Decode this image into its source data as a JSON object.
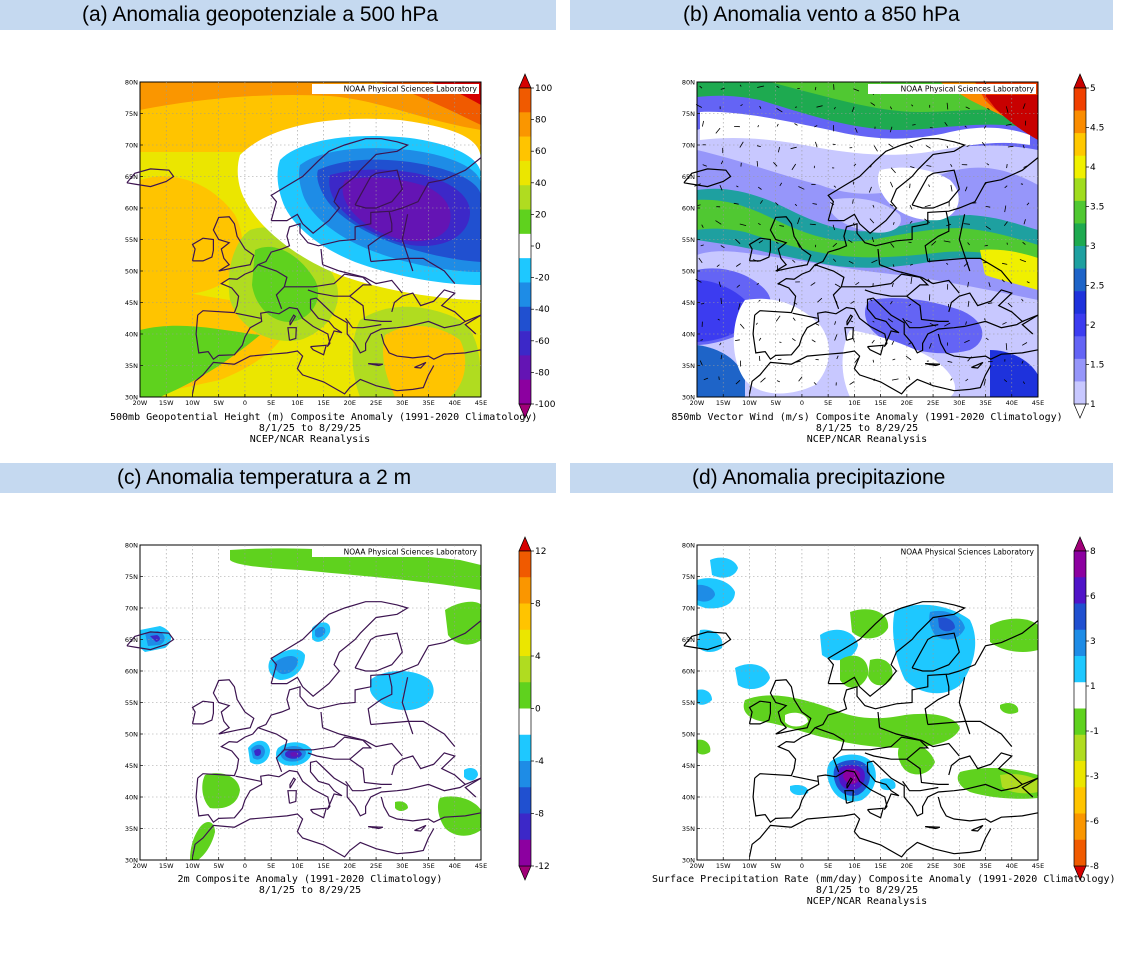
{
  "panels": [
    {
      "id": "a",
      "title": "(a) Anomalia geopotenziale a 500 hPa",
      "credit": "NOAA Physical Sciences Laboratory",
      "caption": [
        "500mb Geopotential Height (m) Composite Anomaly (1991-2020 Climatology)",
        "8/1/25  to 8/29/25",
        "NCEP/NCAR Reanalysis"
      ],
      "colorbar": {
        "labels": [
          "100",
          "80",
          "60",
          "40",
          "20",
          "0",
          "-20",
          "-40",
          "-60",
          "-80",
          "-100"
        ],
        "colors": [
          "#d60000",
          "#f05a00",
          "#fa9600",
          "#ffc400",
          "#ebe600",
          "#b0dc20",
          "#5fd21e",
          "#ffffff",
          "#1ec8ff",
          "#1e8ce6",
          "#2050d0",
          "#3c28c8",
          "#6414b4",
          "#8c00a0",
          "#a00078"
        ]
      }
    },
    {
      "id": "b",
      "title": "(b) Anomalia vento a 850 hPa",
      "credit": "NOAA Physical Sciences Laboratory",
      "caption": [
        "850mb Vector Wind (m/s) Composite Anomaly (1991-2020 Climatology)",
        "8/1/25  to 8/29/25",
        "NCEP/NCAR Reanalysis"
      ],
      "colorbar": {
        "labels": [
          "5",
          "4.5",
          "4",
          "3.5",
          "3",
          "2.5",
          "2",
          "1.5",
          "1"
        ],
        "colors": [
          "#c80000",
          "#f04000",
          "#fa8c00",
          "#ffc800",
          "#f0f000",
          "#a0dc1e",
          "#50c832",
          "#1eaa50",
          "#1ea0a0",
          "#1e64c8",
          "#1e32dc",
          "#3c3cf0",
          "#6464f5",
          "#9696fa",
          "#c8c8ff",
          "#ffffff"
        ]
      }
    },
    {
      "id": "c",
      "title": "(c) Anomalia temperatura a 2 m",
      "credit": "NOAA Physical Sciences Laboratory",
      "caption": [
        "2m   Composite Anomaly (1991-2020 Climatology)",
        "8/1/25  to 8/29/25"
      ],
      "colorbar": {
        "labels": [
          "12",
          "8",
          "4",
          "0",
          "-4",
          "-8",
          "-12"
        ],
        "colors": [
          "#d60000",
          "#f05a00",
          "#fa9600",
          "#ffc400",
          "#ebe600",
          "#b0dc20",
          "#5fd21e",
          "#ffffff",
          "#1ec8ff",
          "#1e8ce6",
          "#2050d0",
          "#3c28c8",
          "#8c00a0",
          "#a00078"
        ]
      }
    },
    {
      "id": "d",
      "title": "(d) Anomalia precipitazione",
      "credit": "NOAA Physical Sciences Laboratory",
      "caption": [
        "Surface Precipitation Rate (mm/day) Composite Anomaly (1991-2020 Climatology)",
        "8/1/25  to 8/29/25",
        "NCEP/NCAR Reanalysis"
      ],
      "colorbar": {
        "labels": [
          "8",
          "6",
          "3",
          "1",
          "-1",
          "-3",
          "-6",
          "-8"
        ],
        "colors": [
          "#a00078",
          "#8c00a0",
          "#5014c8",
          "#2050d0",
          "#1e8ce6",
          "#1ec8ff",
          "#ffffff",
          "#5fd21e",
          "#b0dc20",
          "#ebe600",
          "#ffc400",
          "#fa9600",
          "#f05a00",
          "#d60000"
        ]
      }
    }
  ],
  "map_axes": {
    "lon_labels": [
      "20W",
      "15W",
      "10W",
      "5W",
      "0",
      "5E",
      "10E",
      "15E",
      "20E",
      "25E",
      "30E",
      "35E",
      "40E",
      "45E"
    ],
    "lat_labels": [
      "80N",
      "75N",
      "70N",
      "65N",
      "60N",
      "55N",
      "50N",
      "45N",
      "40N",
      "35N",
      "30N"
    ]
  }
}
